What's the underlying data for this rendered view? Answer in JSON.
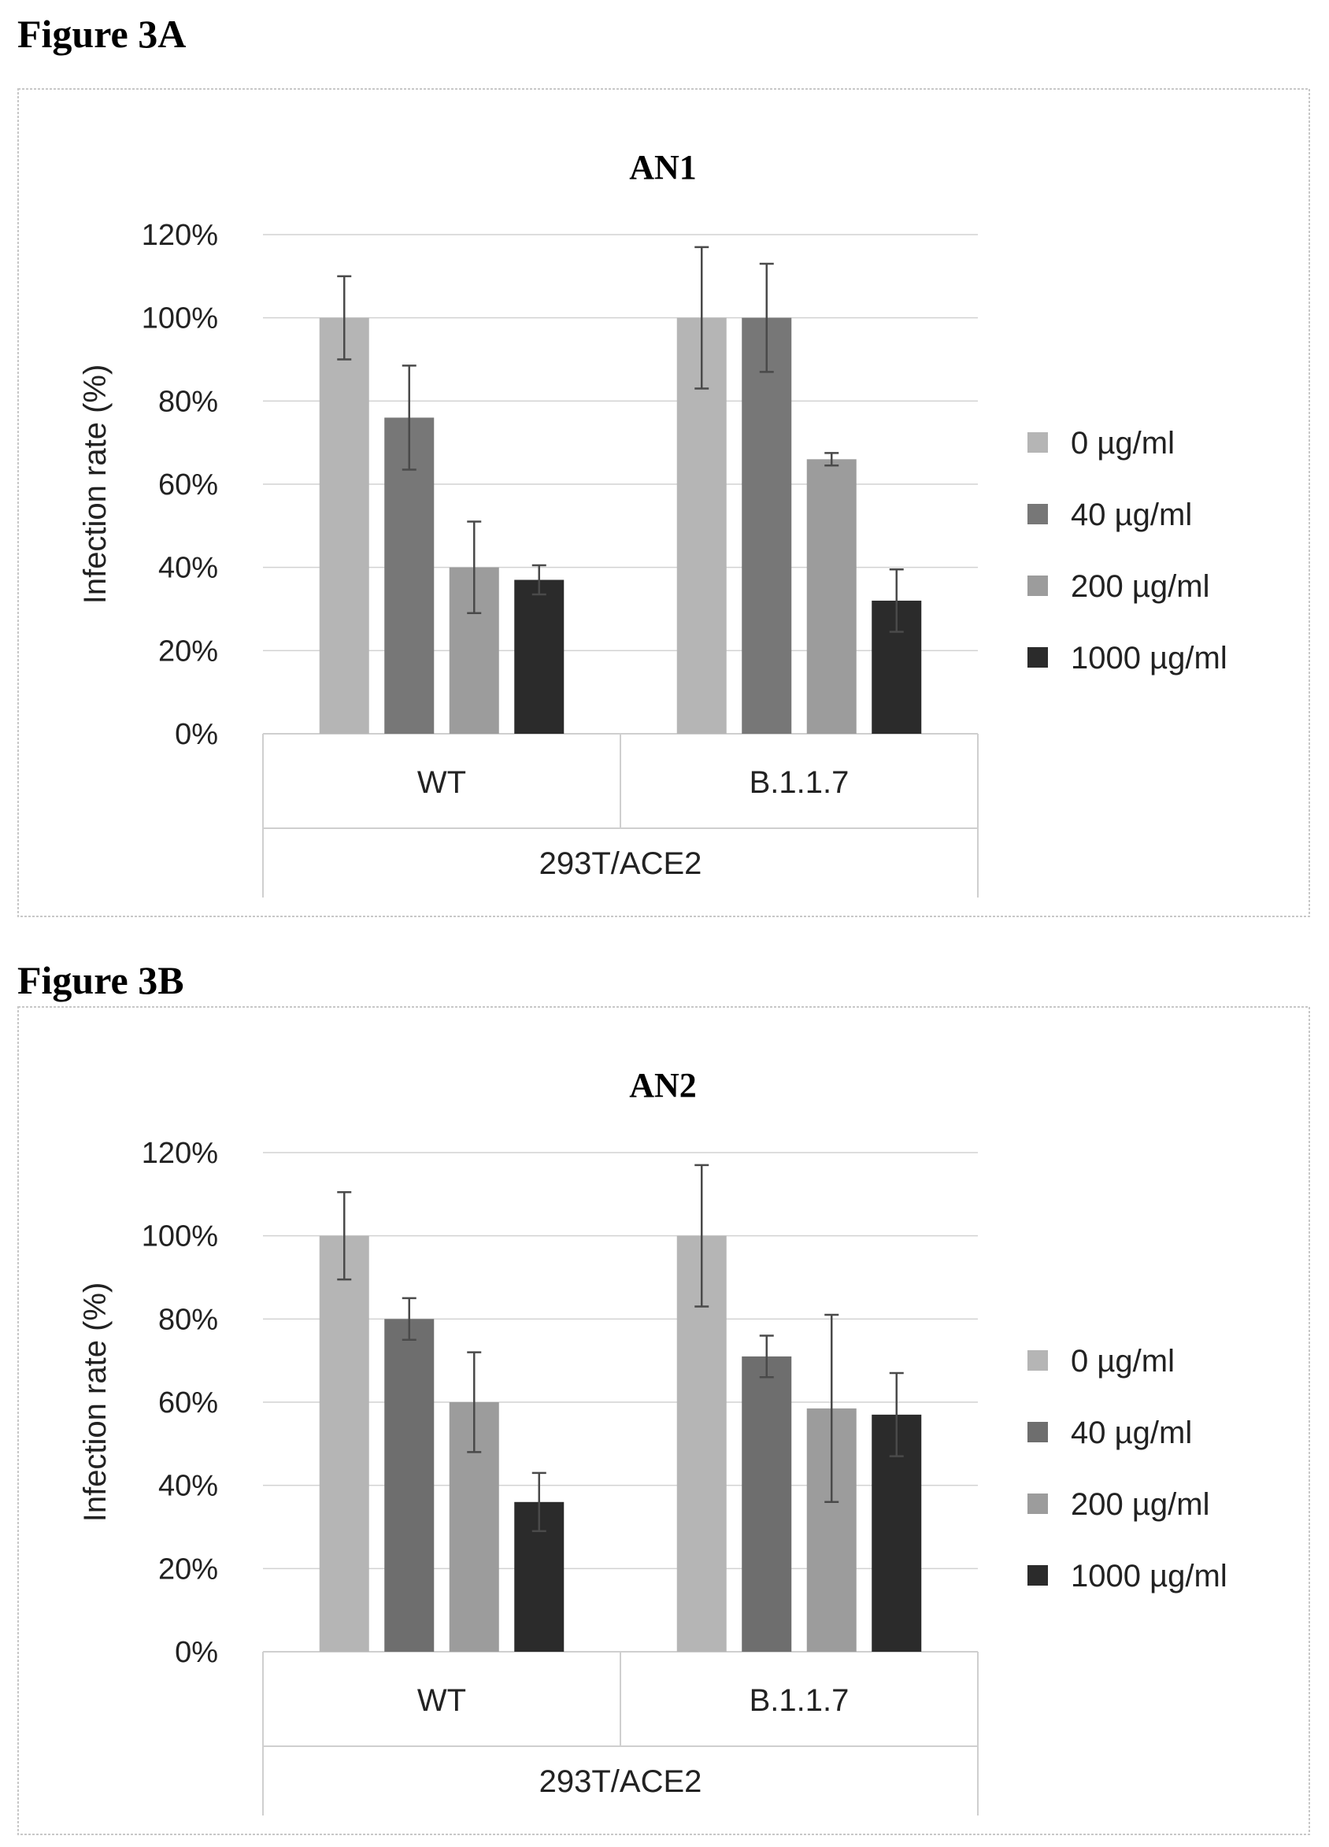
{
  "figures": [
    {
      "label": "Figure 3A"
    },
    {
      "label": "Figure 3B"
    }
  ],
  "chart_data": [
    {
      "type": "bar",
      "title": "AN1",
      "ylabel": "Infection rate (%)",
      "xlabel": "293T/ACE2",
      "categories": [
        "WT",
        "B.1.1.7"
      ],
      "ylim": [
        0,
        120
      ],
      "yticks": [
        "0%",
        "20%",
        "40%",
        "60%",
        "80%",
        "100%",
        "120%"
      ],
      "grid": true,
      "legend_position": "right",
      "series": [
        {
          "name": "0 µg/ml",
          "values": [
            100,
            100
          ],
          "errors": [
            10,
            17
          ],
          "color": "#b5b5b5"
        },
        {
          "name": "40 µg/ml",
          "values": [
            76,
            100
          ],
          "errors": [
            12.5,
            13
          ],
          "color": "#777777"
        },
        {
          "name": "200 µg/ml",
          "values": [
            40,
            66
          ],
          "errors": [
            11,
            1.5
          ],
          "color": "#9c9c9c"
        },
        {
          "name": "1000 µg/ml",
          "values": [
            37,
            32
          ],
          "errors": [
            3.5,
            7.5
          ],
          "color": "#2b2b2b"
        }
      ]
    },
    {
      "type": "bar",
      "title": "AN2",
      "ylabel": "Infection rate (%)",
      "xlabel": "293T/ACE2",
      "categories": [
        "WT",
        "B.1.1.7"
      ],
      "ylim": [
        0,
        120
      ],
      "yticks": [
        "0%",
        "20%",
        "40%",
        "60%",
        "80%",
        "100%",
        "120%"
      ],
      "grid": true,
      "legend_position": "right",
      "series": [
        {
          "name": "0 µg/ml",
          "values": [
            100,
            100
          ],
          "errors": [
            10.5,
            17
          ],
          "color": "#b5b5b5"
        },
        {
          "name": "40 µg/ml",
          "values": [
            80,
            71
          ],
          "errors": [
            5,
            5
          ],
          "color": "#6e6e6e"
        },
        {
          "name": "200 µg/ml",
          "values": [
            60,
            58.5
          ],
          "errors": [
            12,
            22.5
          ],
          "color": "#9c9c9c"
        },
        {
          "name": "1000 µg/ml",
          "values": [
            36,
            57
          ],
          "errors": [
            7,
            10
          ],
          "color": "#2b2b2b"
        }
      ]
    }
  ]
}
